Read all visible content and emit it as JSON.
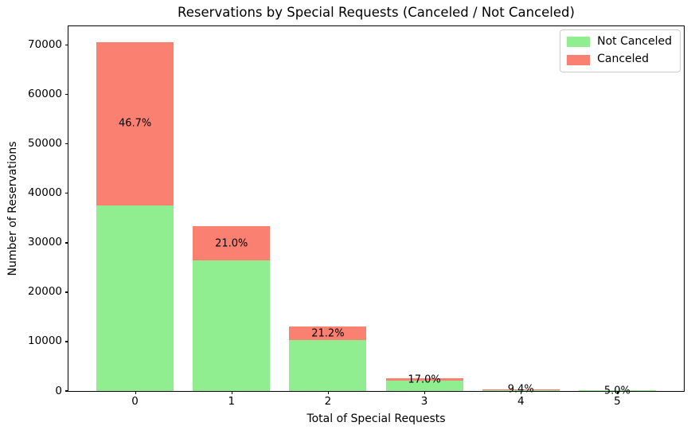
{
  "chart_data": {
    "type": "bar",
    "stacked": true,
    "title": "Reservations by Special Requests (Canceled / Not Canceled)",
    "xlabel": "Total of Special Requests",
    "ylabel": "Number of Reservations",
    "categories": [
      "0",
      "1",
      "2",
      "3",
      "4",
      "5"
    ],
    "series": [
      {
        "name": "Not Canceled",
        "color": "#90ee90",
        "values": [
          37480,
          26249,
          10220,
          2073,
          308,
          38
        ]
      },
      {
        "name": "Canceled",
        "color": "#fa8072",
        "values": [
          32838,
          6977,
          2749,
          424,
          32,
          2
        ]
      }
    ],
    "bar_totals": [
      70318,
      33226,
      12969,
      2497,
      340,
      40
    ],
    "bar_labels": [
      "46.7%",
      "21.0%",
      "21.2%",
      "17.0%",
      "9.4%",
      "5.0%"
    ],
    "yticks": [
      0,
      10000,
      20000,
      30000,
      40000,
      50000,
      60000,
      70000
    ],
    "ylim": [
      0,
      73834
    ],
    "grid": false,
    "legend": {
      "position": "upper right",
      "entries": [
        "Not Canceled",
        "Canceled"
      ]
    }
  }
}
